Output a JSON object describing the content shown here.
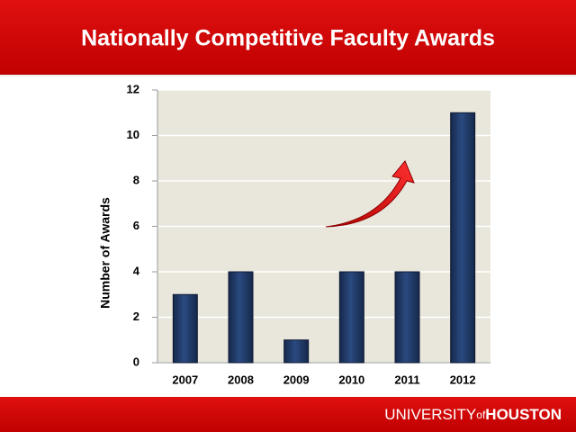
{
  "chart_data": {
    "type": "bar",
    "title": "Nationally Competitive Faculty Awards",
    "y_label": "Number of Awards",
    "categories": [
      "2007",
      "2008",
      "2009",
      "2010",
      "2011",
      "2012"
    ],
    "values": [
      3,
      4,
      1,
      4,
      4,
      11
    ],
    "color": "#1f3864",
    "ylim": [
      0,
      12
    ],
    "yticks": [
      0,
      2,
      4,
      6,
      8,
      10,
      12
    ],
    "grid": true
  },
  "footer": {
    "university": "UNIVERSITY",
    "of": "of",
    "houston": "HOUSTON"
  }
}
